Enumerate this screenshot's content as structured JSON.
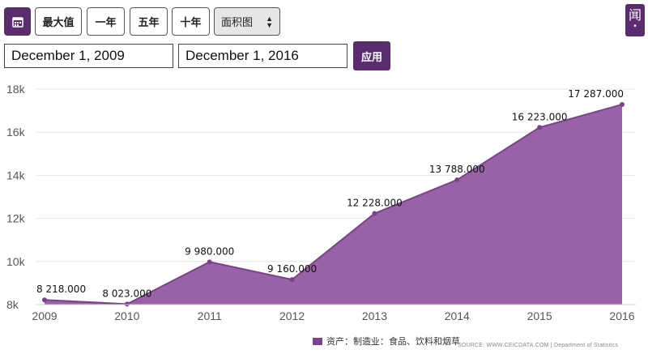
{
  "toolbar": {
    "calendar_icon": "calendar-icon",
    "range_buttons": [
      "最大值",
      "一年",
      "五年",
      "十年"
    ],
    "chart_type_value": "面积图",
    "start_date": "December 1, 2009",
    "end_date": "December 1, 2016",
    "apply_label": "应用",
    "news_label": "闻"
  },
  "colors": {
    "accent": "#5c2d6e",
    "area": "#9a62a6",
    "line": "#7b4289"
  },
  "chart_data": {
    "type": "area",
    "categories": [
      "2009",
      "2010",
      "2011",
      "2012",
      "2013",
      "2014",
      "2015",
      "2016"
    ],
    "series": [
      {
        "name": "资产：制造业：食品、饮料和烟草",
        "values": [
          8218,
          8023,
          9980,
          9160,
          12228,
          13788,
          16223,
          17287
        ],
        "labels": [
          "8 218.000",
          "8 023.000",
          "9 980.000",
          "9 160.000",
          "12 228.000",
          "13 788.000",
          "16 223.000",
          "17 287.000"
        ]
      }
    ],
    "yticks": [
      "8k",
      "10k",
      "12k",
      "14k",
      "16k",
      "18k"
    ],
    "ylim": [
      8000,
      18000
    ],
    "grid": true,
    "legend": "bottom",
    "source": "SOURCE: WWW.CEICDATA.COM | Department of Statistics"
  }
}
